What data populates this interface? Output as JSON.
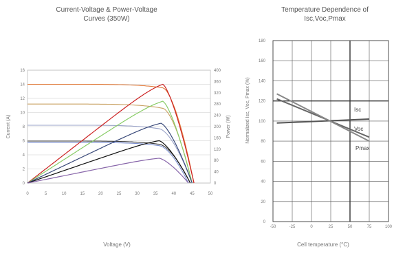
{
  "chart_data": [
    {
      "type": "line",
      "title": "Current-Voltage & Power-Voltage",
      "subtitle": "Curves (350W)",
      "xlabel": "Voltage (V)",
      "ylabel": "Current (A)",
      "y2label": "Power (W)",
      "xlim": [
        0,
        50
      ],
      "ylim": [
        0,
        16
      ],
      "y2lim": [
        0,
        400
      ],
      "xticks": [
        "0",
        "5",
        "10",
        "15",
        "20",
        "25",
        "30",
        "35",
        "40",
        "45",
        "50"
      ],
      "yticks": [
        "0",
        "2",
        "4",
        "6",
        "8",
        "10",
        "12",
        "14",
        "16"
      ],
      "y2ticks": [
        "0",
        "40",
        "80",
        "120",
        "160",
        "200",
        "240",
        "280",
        "320",
        "360",
        "400"
      ],
      "grid": "horizontal",
      "iv_curves": [
        {
          "color": "#3a3a3a",
          "isc": 5.95,
          "voc": 44.5,
          "vmp": 36.0,
          "imp": 5.5
        },
        {
          "color": "#7b8fd1",
          "isc": 5.75,
          "voc": 44.0,
          "vmp": 36.0,
          "imp": 5.3
        },
        {
          "color": "#e07a3a",
          "isc": 14.0,
          "voc": 45.5,
          "vmp": 37.0,
          "imp": 13.5
        },
        {
          "color": "#c8a060",
          "isc": 11.2,
          "voc": 45.0,
          "vmp": 37.0,
          "imp": 10.6
        },
        {
          "color": "#9aa3c8",
          "isc": 8.2,
          "voc": 45.0,
          "vmp": 36.0,
          "imp": 7.7
        }
      ],
      "pv_curves": [
        {
          "color": "#cc2222",
          "pmax": 350,
          "vmp": 37.0,
          "voc": 45.5
        },
        {
          "color": "#88cc66",
          "pmax": 290,
          "vmp": 37.0,
          "voc": 45.0
        },
        {
          "color": "#3a4a7a",
          "pmax": 212,
          "vmp": 36.5,
          "voc": 45.0
        },
        {
          "color": "#111111",
          "pmax": 150,
          "vmp": 36.0,
          "voc": 44.5
        },
        {
          "color": "#8866aa",
          "pmax": 88,
          "vmp": 36.0,
          "voc": 44.0
        }
      ]
    },
    {
      "type": "line",
      "title": "Temperature Dependence of",
      "subtitle": "Isc,Voc,Pmax",
      "xlabel": "Cell temperature (°C)",
      "ylabel": "Normalized Isc, Voc, Pmax (%)",
      "xlim": [
        -50,
        100
      ],
      "ylim": [
        0,
        180
      ],
      "xticks": [
        "-50",
        "-25",
        "0",
        "25",
        "50",
        "75",
        "100"
      ],
      "yticks": [
        "0",
        "20",
        "40",
        "60",
        "80",
        "100",
        "120",
        "140",
        "160",
        "180"
      ],
      "grid": "both",
      "series": [
        {
          "name": "Isc",
          "color": "#555555",
          "x": [
            -45,
            75
          ],
          "y": [
            98,
            102
          ]
        },
        {
          "name": "Voc",
          "color": "#666666",
          "x": [
            -45,
            75
          ],
          "y": [
            122,
            84
          ]
        },
        {
          "name": "Pmax",
          "color": "#888888",
          "x": [
            -45,
            75
          ],
          "y": [
            127,
            80
          ]
        }
      ],
      "reference_lines": {
        "x": 50,
        "y": 120
      }
    }
  ],
  "text": {
    "chart1_title": "Current-Voltage & Power-Voltage",
    "chart1_subtitle": "Curves (350W)",
    "chart1_xlabel": "Voltage (V)",
    "chart1_ylabel": "Current (A)",
    "chart1_y2label": "Power (W)",
    "chart2_title": "Temperature Dependence of",
    "chart2_subtitle": "Isc,Voc,Pmax",
    "chart2_xlabel": "Cell temperature (°C)",
    "chart2_ylabel": "Normalized Isc, Voc, Pmax (%)"
  }
}
